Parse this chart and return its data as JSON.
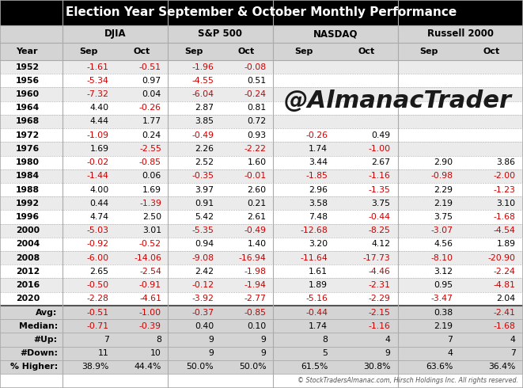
{
  "title": "Election Year September & October Monthly Performance",
  "col_groups": [
    "DJIA",
    "S&P 500",
    "NASDAQ",
    "Russell 2000"
  ],
  "col_headers": [
    "Year",
    "Sep",
    "Oct",
    "Sep",
    "Oct",
    "Sep",
    "Oct",
    "Sep",
    "Oct"
  ],
  "rows": [
    [
      "1952",
      "-1.61",
      "-0.51",
      "-1.96",
      "-0.08",
      "",
      "",
      "",
      ""
    ],
    [
      "1956",
      "-5.34",
      "0.97",
      "-4.55",
      "0.51",
      "",
      "",
      "",
      ""
    ],
    [
      "1960",
      "-7.32",
      "0.04",
      "-6.04",
      "-0.24",
      "",
      "",
      "",
      ""
    ],
    [
      "1964",
      "4.40",
      "-0.26",
      "2.87",
      "0.81",
      "",
      "",
      "",
      ""
    ],
    [
      "1968",
      "4.44",
      "1.77",
      "3.85",
      "0.72",
      "",
      "",
      "",
      ""
    ],
    [
      "1972",
      "-1.09",
      "0.24",
      "-0.49",
      "0.93",
      "-0.26",
      "0.49",
      "",
      ""
    ],
    [
      "1976",
      "1.69",
      "-2.55",
      "2.26",
      "-2.22",
      "1.74",
      "-1.00",
      "",
      ""
    ],
    [
      "1980",
      "-0.02",
      "-0.85",
      "2.52",
      "1.60",
      "3.44",
      "2.67",
      "2.90",
      "3.86"
    ],
    [
      "1984",
      "-1.44",
      "0.06",
      "-0.35",
      "-0.01",
      "-1.85",
      "-1.16",
      "-0.98",
      "-2.00"
    ],
    [
      "1988",
      "4.00",
      "1.69",
      "3.97",
      "2.60",
      "2.96",
      "-1.35",
      "2.29",
      "-1.23"
    ],
    [
      "1992",
      "0.44",
      "-1.39",
      "0.91",
      "0.21",
      "3.58",
      "3.75",
      "2.19",
      "3.10"
    ],
    [
      "1996",
      "4.74",
      "2.50",
      "5.42",
      "2.61",
      "7.48",
      "-0.44",
      "3.75",
      "-1.68"
    ],
    [
      "2000",
      "-5.03",
      "3.01",
      "-5.35",
      "-0.49",
      "-12.68",
      "-8.25",
      "-3.07",
      "-4.54"
    ],
    [
      "2004",
      "-0.92",
      "-0.52",
      "0.94",
      "1.40",
      "3.20",
      "4.12",
      "4.56",
      "1.89"
    ],
    [
      "2008",
      "-6.00",
      "-14.06",
      "-9.08",
      "-16.94",
      "-11.64",
      "-17.73",
      "-8.10",
      "-20.90"
    ],
    [
      "2012",
      "2.65",
      "-2.54",
      "2.42",
      "-1.98",
      "1.61",
      "-4.46",
      "3.12",
      "-2.24"
    ],
    [
      "2016",
      "-0.50",
      "-0.91",
      "-0.12",
      "-1.94",
      "1.89",
      "-2.31",
      "0.95",
      "-4.81"
    ],
    [
      "2020",
      "-2.28",
      "-4.61",
      "-3.92",
      "-2.77",
      "-5.16",
      "-2.29",
      "-3.47",
      "2.04"
    ]
  ],
  "summary_rows": [
    [
      "Avg:",
      "-0.51",
      "-1.00",
      "-0.37",
      "-0.85",
      "-0.44",
      "-2.15",
      "0.38",
      "-2.41"
    ],
    [
      "Median:",
      "-0.71",
      "-0.39",
      "0.40",
      "0.10",
      "1.74",
      "-1.16",
      "2.19",
      "-1.68"
    ],
    [
      "#Up:",
      "7",
      "8",
      "9",
      "9",
      "8",
      "4",
      "7",
      "4"
    ],
    [
      "#Down:",
      "11",
      "10",
      "9",
      "9",
      "5",
      "9",
      "4",
      "7"
    ],
    [
      "% Higher:",
      "38.9%",
      "44.4%",
      "50.0%",
      "50.0%",
      "61.5%",
      "30.8%",
      "63.6%",
      "36.4%"
    ]
  ],
  "watermark": "@AlmanacTrader",
  "copyright": "© StockTradersAlmanac.com, Hirsch Holdings Inc. All rights reserved.",
  "title_bg": "#000000",
  "title_fg": "#ffffff",
  "header_bg": "#d4d4d4",
  "row_bg_odd": "#ebebeb",
  "row_bg_even": "#ffffff",
  "summary_bg": "#d4d4d4",
  "neg_color": "#cc0000",
  "pos_color": "#000000",
  "border_color": "#aaaaaa",
  "thick_border": "#555555"
}
